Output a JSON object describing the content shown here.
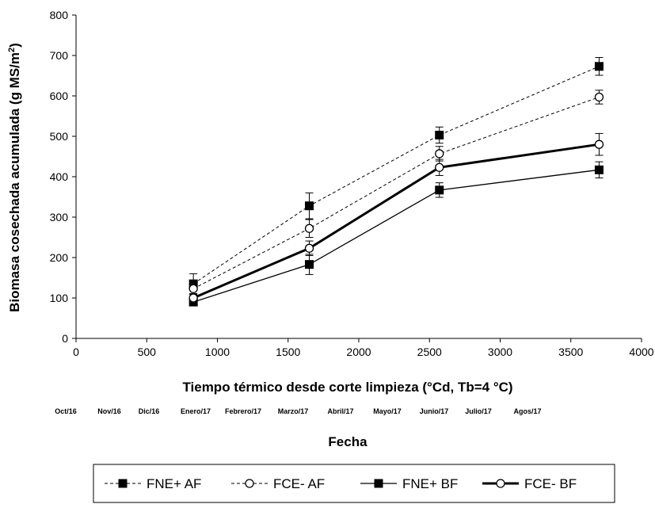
{
  "chart_data": {
    "type": "line",
    "ylabel_main": "Biomasa cosechada acumulada (g MS/m",
    "ylabel_sup": "2",
    "ylabel_end": ")",
    "xlabel": "Tiempo térmico desde corte limpieza (°Cd, Tb=4 °C)",
    "xlim": [
      0,
      4000
    ],
    "ylim": [
      0,
      800
    ],
    "xticks": [
      "0",
      "500",
      "1000",
      "1500",
      "2000",
      "2500",
      "3000",
      "3500",
      "4000"
    ],
    "yticks": [
      "0",
      "100",
      "200",
      "300",
      "400",
      "500",
      "600",
      "700",
      "800"
    ],
    "grid": false,
    "legend_position": "bottom",
    "secondary_axis": {
      "title": "Fecha",
      "months": [
        "Oct/16",
        "Nov/16",
        "Dic/16",
        "Enero/17",
        "Febrero/17",
        "Marzo/17",
        "Abril/17",
        "Mayo/17",
        "Junio/17",
        "Julio/17",
        "Agos/17"
      ]
    },
    "x": [
      830,
      1650,
      2570,
      3700
    ],
    "series": [
      {
        "name": "FNE+ AF",
        "marker": "square",
        "line": "dashed",
        "values": [
          135,
          328,
          503,
          673
        ],
        "errors": [
          25,
          32,
          20,
          22
        ]
      },
      {
        "name": "FCE- AF",
        "marker": "circle",
        "line": "dashed",
        "values": [
          123,
          272,
          457,
          597
        ],
        "errors": [
          12,
          22,
          18,
          17
        ]
      },
      {
        "name": "FNE+ BF",
        "marker": "square",
        "line": "solid",
        "values": [
          90,
          183,
          367,
          417
        ],
        "errors": [
          5,
          25,
          18,
          20
        ]
      },
      {
        "name": "FCE- BF",
        "marker": "circle",
        "line": "thick",
        "values": [
          100,
          223,
          423,
          480
        ],
        "errors": [
          8,
          18,
          20,
          27
        ]
      }
    ]
  }
}
